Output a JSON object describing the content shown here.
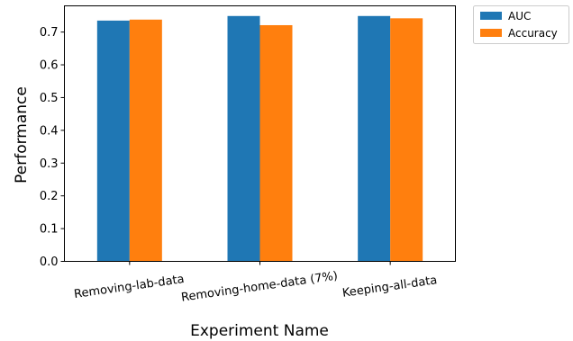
{
  "chart_data": {
    "type": "bar",
    "categories": [
      "Removing-lab-data",
      "Removing-home-data (7%)",
      "Keeping-all-data"
    ],
    "series": [
      {
        "name": "AUC",
        "values": [
          0.735,
          0.749,
          0.749
        ],
        "color": "#1f77b4"
      },
      {
        "name": "Accuracy",
        "values": [
          0.738,
          0.721,
          0.742
        ],
        "color": "#ff7f0e"
      }
    ],
    "xlabel": "Experiment Name",
    "ylabel": "Performance",
    "ylim": [
      0,
      0.78
    ],
    "yticks": [
      0.0,
      0.1,
      0.2,
      0.3,
      0.4,
      0.5,
      0.6,
      0.7
    ],
    "ytick_labels": [
      "0.0",
      "0.1",
      "0.2",
      "0.3",
      "0.4",
      "0.5",
      "0.6",
      "0.7"
    ],
    "grid": false,
    "legend_position": "outside-top-right"
  }
}
